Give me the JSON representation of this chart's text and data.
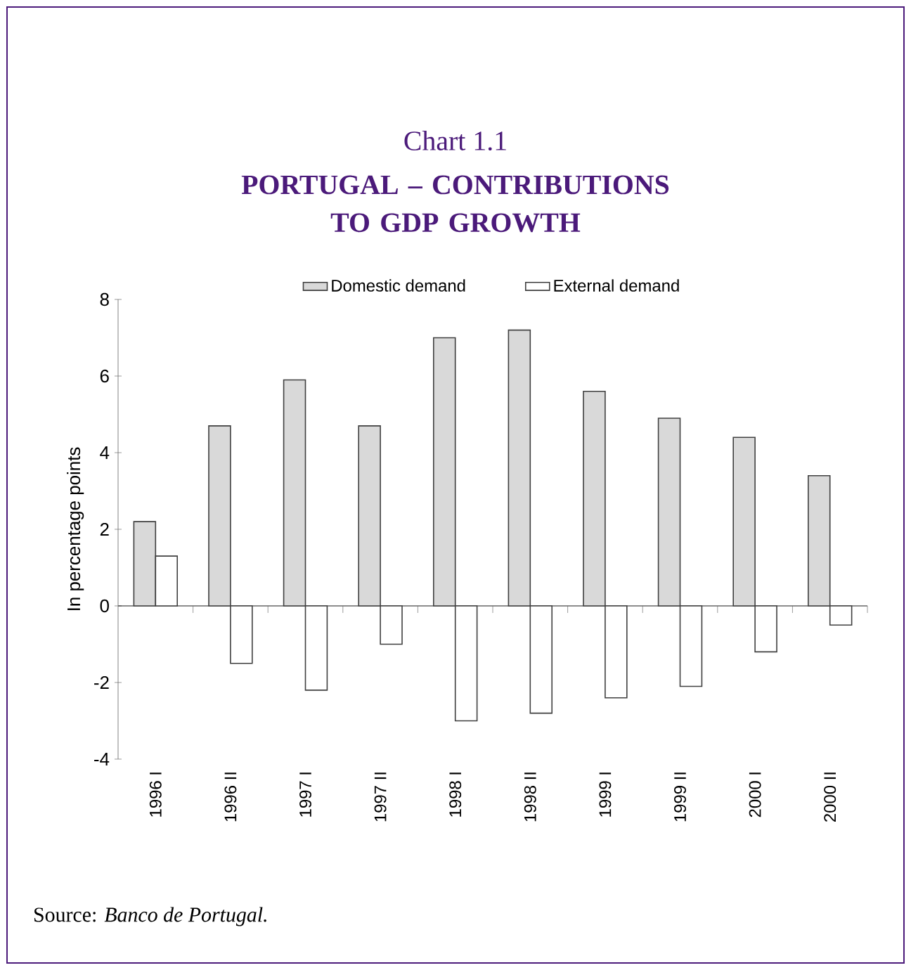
{
  "chart_data": {
    "type": "bar",
    "title": "Chart 1.1",
    "subtitle": "PORTUGAL – CONTRIBUTIONS TO GDP GROWTH",
    "ylabel": "In percentage points",
    "categories": [
      "1996 I",
      "1996 II",
      "1997 I",
      "1997 II",
      "1998 I",
      "1998 II",
      "1999 I",
      "1999 II",
      "2000 I",
      "2000 II"
    ],
    "series": [
      {
        "name": "Domestic demand",
        "color": "#d9d9d9",
        "values": [
          2.2,
          4.7,
          5.9,
          4.7,
          7.0,
          7.2,
          5.6,
          4.9,
          4.4,
          3.4
        ]
      },
      {
        "name": "External demand",
        "color": "#ffffff",
        "values": [
          1.3,
          -1.5,
          -2.2,
          -1.0,
          -3.0,
          -2.8,
          -2.4,
          -2.1,
          -1.2,
          -0.5
        ]
      }
    ],
    "ylim": [
      -4,
      8
    ],
    "yticks": [
      -4,
      -2,
      0,
      2,
      4,
      6,
      8
    ],
    "legend": "top",
    "annotations": [
      "Source: *Banco de Portugal.*"
    ]
  }
}
